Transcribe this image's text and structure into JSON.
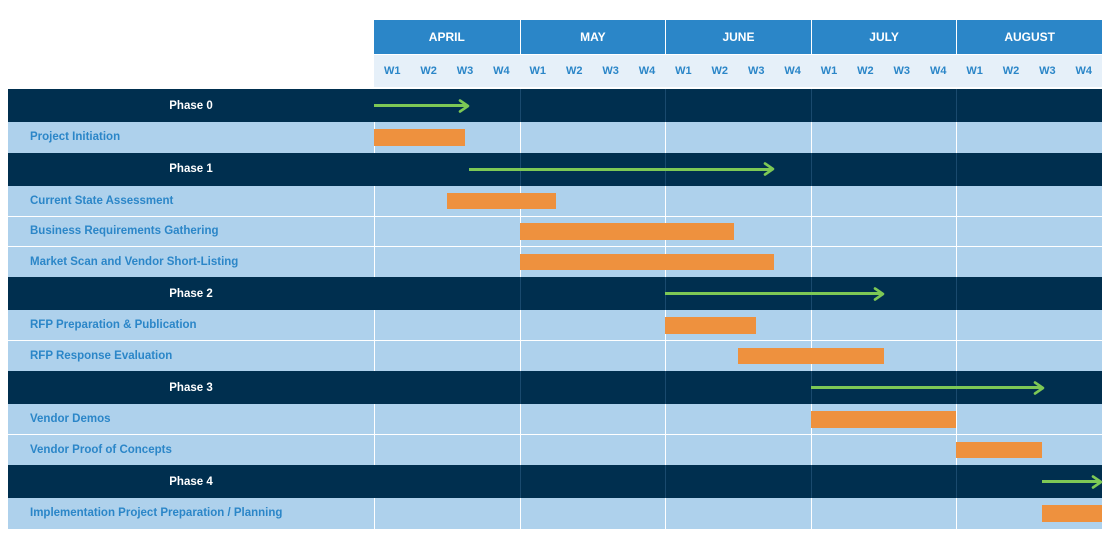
{
  "chart_data": {
    "type": "gantt",
    "title": "",
    "months": [
      "APRIL",
      "MAY",
      "JUNE",
      "JULY",
      "AUGUST"
    ],
    "weeks": [
      "W1",
      "W2",
      "W3",
      "W4"
    ],
    "rows": [
      {
        "kind": "phase",
        "label": "Phase 0",
        "start": 0,
        "end": 2.6
      },
      {
        "kind": "task",
        "label": "Project Initiation",
        "start": 0,
        "end": 2.5
      },
      {
        "kind": "phase",
        "label": "Phase 1",
        "start": 2.6,
        "end": 11
      },
      {
        "kind": "task",
        "label": "Current State Assessment",
        "start": 2,
        "end": 5
      },
      {
        "kind": "task",
        "label": "Business Requirements Gathering",
        "start": 4,
        "end": 9.9
      },
      {
        "kind": "task",
        "label": "Market Scan and Vendor Short-Listing",
        "start": 4,
        "end": 11
      },
      {
        "kind": "phase",
        "label": "Phase 2",
        "start": 8,
        "end": 14
      },
      {
        "kind": "task",
        "label": "RFP Preparation & Publication",
        "start": 8,
        "end": 10.5
      },
      {
        "kind": "task",
        "label": "RFP Response Evaluation",
        "start": 10,
        "end": 14
      },
      {
        "kind": "phase",
        "label": "Phase 3",
        "start": 12,
        "end": 18.4
      },
      {
        "kind": "task",
        "label": "Vendor Demos",
        "start": 12,
        "end": 16
      },
      {
        "kind": "task",
        "label": "Vendor Proof of Concepts",
        "start": 16,
        "end": 18.35
      },
      {
        "kind": "phase",
        "label": "Phase 4",
        "start": 18.35,
        "end": 20
      },
      {
        "kind": "task",
        "label": "Implementation Project Preparation / Planning",
        "start": 18.35,
        "end": 20
      }
    ]
  },
  "colors": {
    "header": "#2b86c8",
    "week_bg": "#e6f0f9",
    "phase_row": "#002f4f",
    "task_row": "#aed1ec",
    "bar": "#ee913e",
    "arrow": "#7dc855",
    "task_text": "#2b86c8"
  }
}
